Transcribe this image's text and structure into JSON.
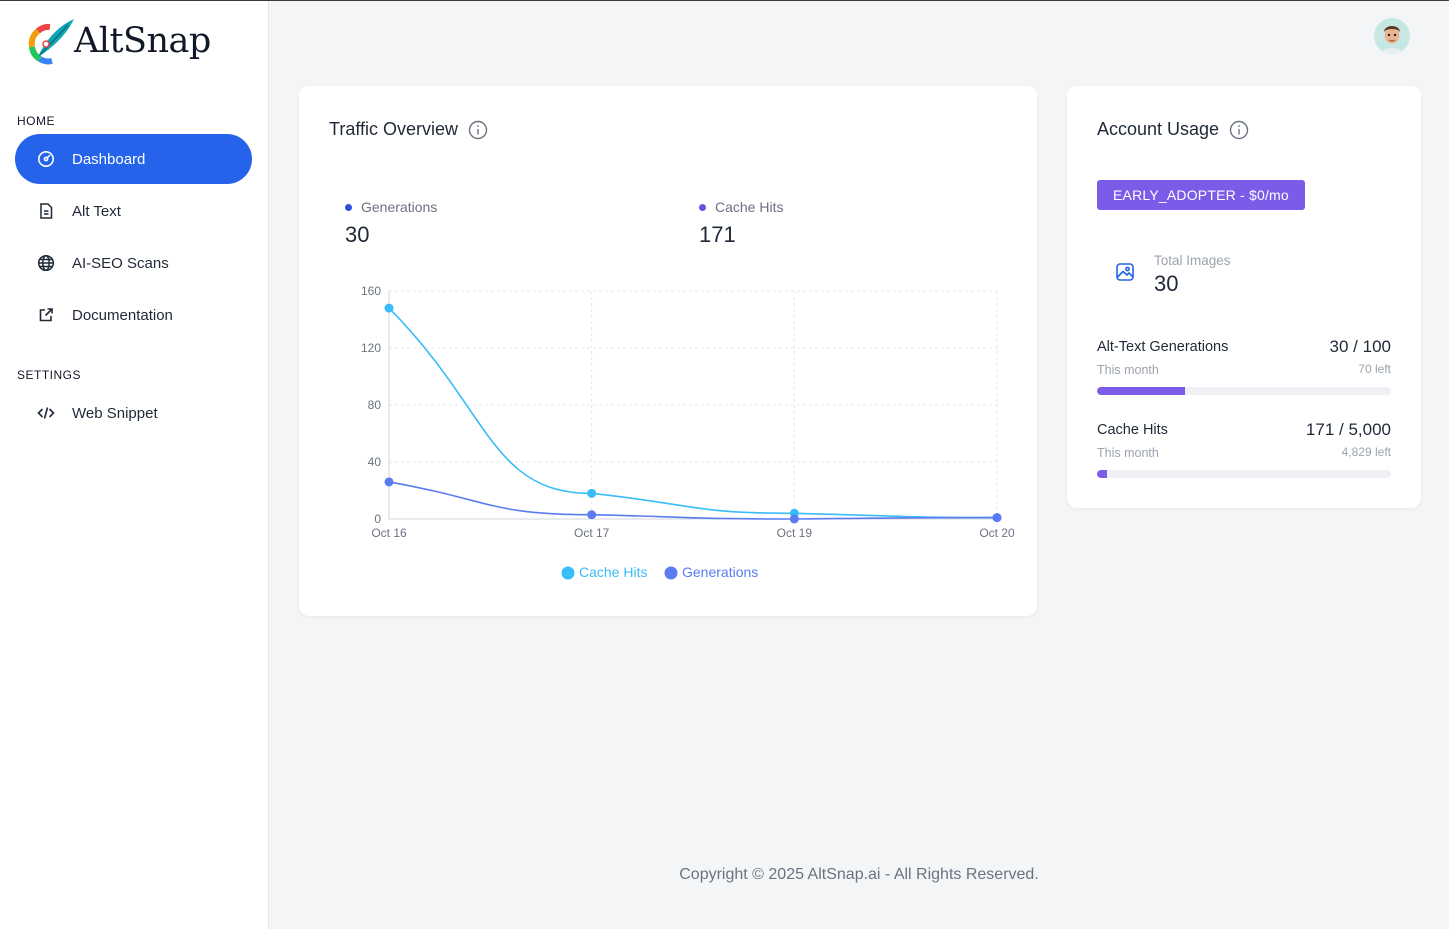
{
  "brand": {
    "name": "AltSnap"
  },
  "sidebar": {
    "sections": [
      {
        "title": "HOME"
      },
      {
        "title": "SETTINGS"
      }
    ],
    "items": [
      {
        "label": "Dashboard",
        "icon": "gauge-icon",
        "active": true
      },
      {
        "label": "Alt Text",
        "icon": "document-icon",
        "active": false
      },
      {
        "label": "AI-SEO Scans",
        "icon": "globe-icon",
        "active": false
      },
      {
        "label": "Documentation",
        "icon": "external-link-icon",
        "active": false
      },
      {
        "label": "Web Snippet",
        "icon": "code-icon",
        "active": false
      }
    ]
  },
  "header": {
    "avatar": "user-avatar"
  },
  "traffic": {
    "title": "Traffic Overview",
    "stats": [
      {
        "label": "Generations",
        "value": "30",
        "color": "#2f4fd6"
      },
      {
        "label": "Cache Hits",
        "value": "171",
        "color": "#6a4fe0"
      }
    ]
  },
  "chart_data": {
    "type": "line",
    "x": [
      "Oct 16",
      "Oct 17",
      "Oct 19",
      "Oct 20"
    ],
    "series": [
      {
        "name": "Cache Hits",
        "values": [
          148,
          18,
          4,
          1
        ],
        "color": "#38bdf8"
      },
      {
        "name": "Generations",
        "values": [
          26,
          3,
          0,
          1
        ],
        "color": "#5b7cf0"
      }
    ],
    "yticks": [
      0,
      40,
      80,
      120,
      160
    ],
    "ylim": [
      0,
      160
    ],
    "grid": true,
    "legend": "bottom-center"
  },
  "usage": {
    "title": "Account Usage",
    "plan": "EARLY_ADOPTER - $0/mo",
    "total_images_label": "Total Images",
    "total_images_value": "30",
    "rows": [
      {
        "name": "Alt-Text Generations",
        "sub": "This month",
        "value": "30 / 100",
        "left": "70 left",
        "fraction": 0.3
      },
      {
        "name": "Cache Hits",
        "sub": "This month",
        "value": "171 / 5,000",
        "left": "4,829 left",
        "fraction": 0.034
      }
    ]
  },
  "footer": {
    "text": "Copyright © 2025 AltSnap.ai - All Rights Reserved."
  }
}
